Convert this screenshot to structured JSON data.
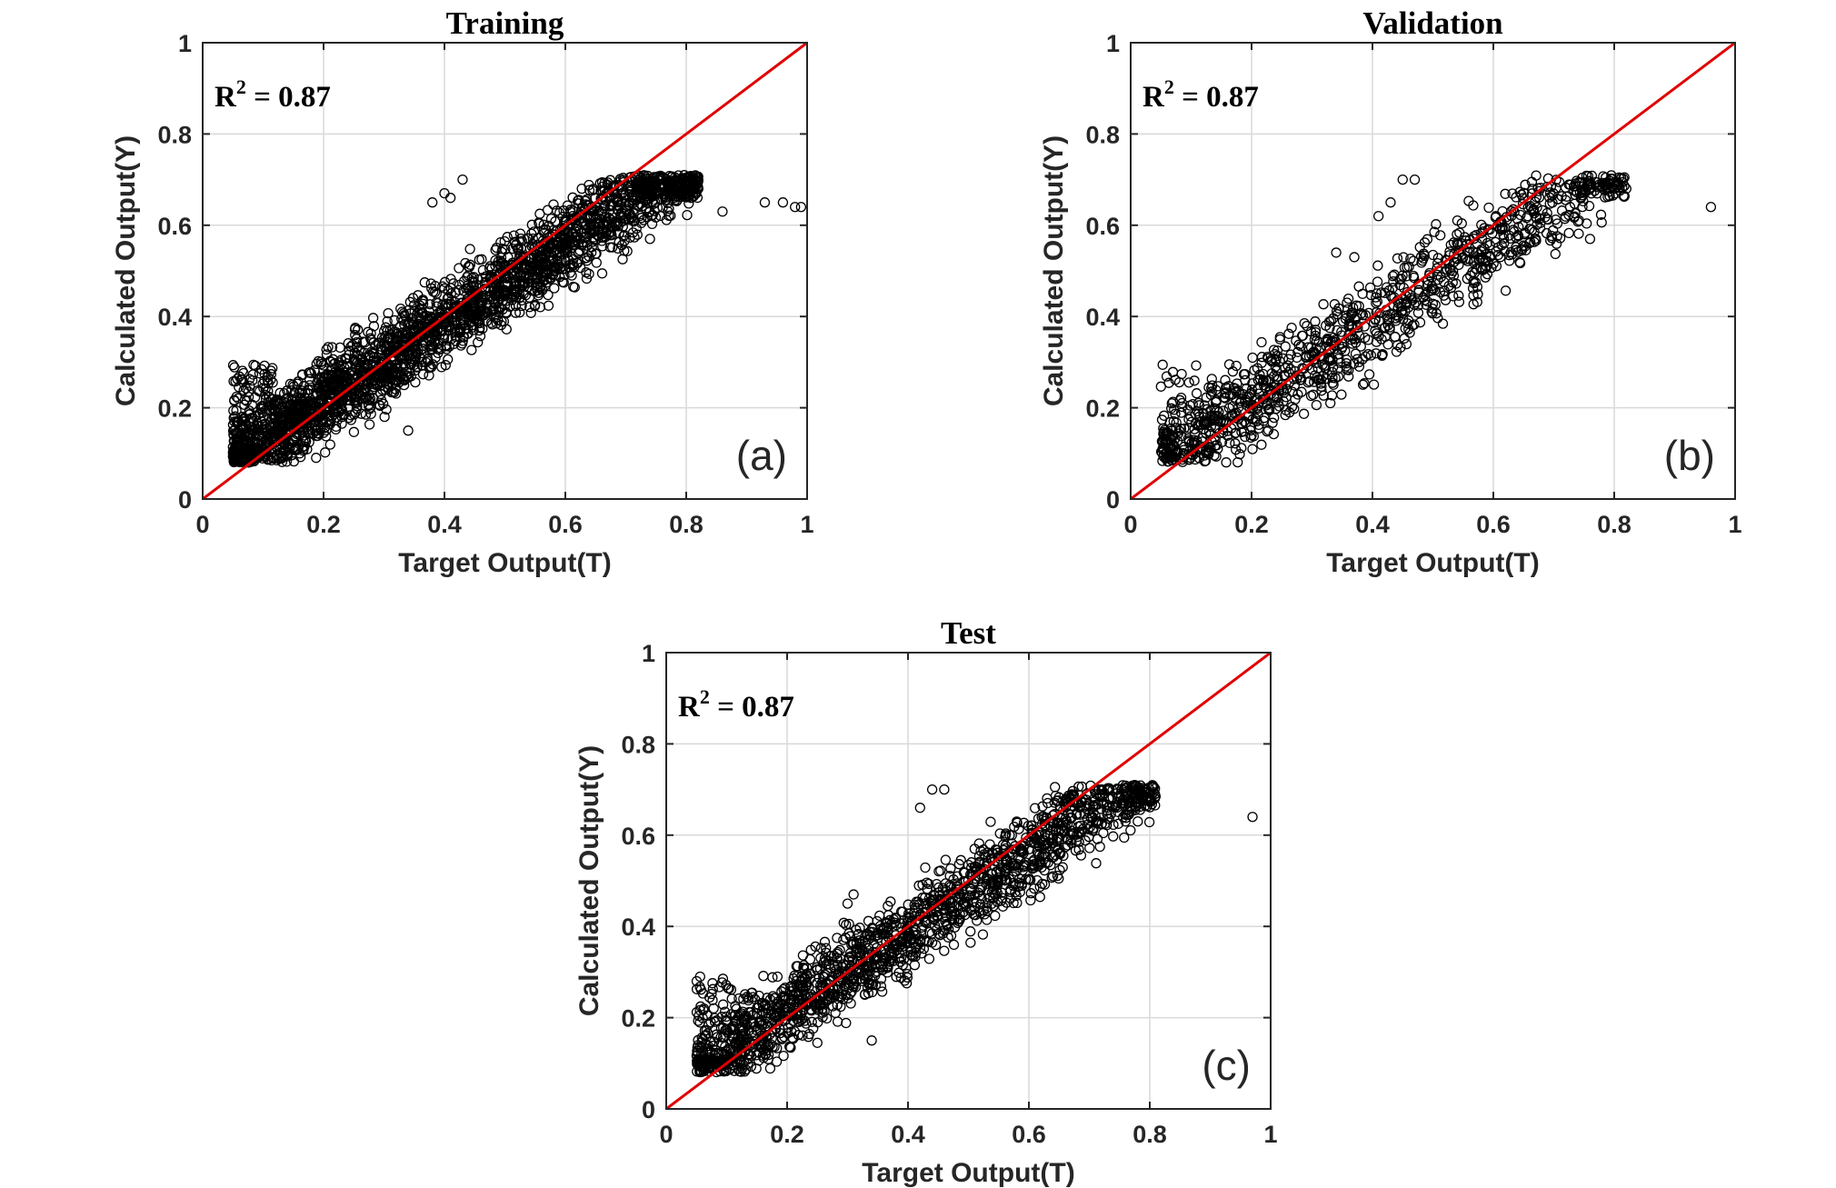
{
  "chart_data": [
    {
      "type": "scatter",
      "title": "Training",
      "panel_label": "(a)",
      "r2_text": {
        "base": "R",
        "sup": "2",
        "rest": " = 0.87"
      },
      "xlabel": "Target Output(T)",
      "ylabel": "Calculated Output(Y)",
      "xlim": [
        0,
        1
      ],
      "ylim": [
        0,
        1
      ],
      "xticks": [
        "0",
        "0.2",
        "0.4",
        "0.6",
        "0.8",
        "1"
      ],
      "yticks": [
        "0",
        "0.2",
        "0.4",
        "0.6",
        "0.8",
        "1"
      ],
      "grid": true,
      "reference_line": {
        "from": [
          0,
          0
        ],
        "to": [
          1,
          1
        ],
        "color": "#e00000"
      },
      "marker": {
        "shape": "open-circle",
        "color": "#000000"
      },
      "cloud": {
        "x_range": [
          0.05,
          0.82
        ],
        "y_range": [
          0.08,
          0.71
        ],
        "slope": 0.87,
        "intercept": 0.04,
        "spread": 0.045,
        "count": 2600
      },
      "points": [
        [
          0.86,
          0.63
        ],
        [
          0.93,
          0.65
        ],
        [
          0.96,
          0.65
        ],
        [
          0.98,
          0.64
        ],
        [
          0.99,
          0.64
        ],
        [
          0.43,
          0.7
        ],
        [
          0.41,
          0.66
        ],
        [
          0.4,
          0.67
        ],
        [
          0.38,
          0.65
        ],
        [
          0.74,
          0.57
        ],
        [
          0.81,
          0.68
        ],
        [
          0.82,
          0.68
        ],
        [
          0.34,
          0.15
        ]
      ]
    },
    {
      "type": "scatter",
      "title": "Validation",
      "panel_label": "(b)",
      "r2_text": {
        "base": "R",
        "sup": "2",
        "rest": " = 0.87"
      },
      "xlabel": "Target Output(T)",
      "ylabel": "Calculated Output(Y)",
      "xlim": [
        0,
        1
      ],
      "ylim": [
        0,
        1
      ],
      "xticks": [
        "0",
        "0.2",
        "0.4",
        "0.6",
        "0.8",
        "1"
      ],
      "yticks": [
        "0",
        "0.2",
        "0.4",
        "0.6",
        "0.8",
        "1"
      ],
      "grid": true,
      "reference_line": {
        "from": [
          0,
          0
        ],
        "to": [
          1,
          1
        ],
        "color": "#e00000"
      },
      "marker": {
        "shape": "open-circle",
        "color": "#000000"
      },
      "cloud": {
        "x_range": [
          0.05,
          0.82
        ],
        "y_range": [
          0.08,
          0.71
        ],
        "slope": 0.87,
        "intercept": 0.04,
        "spread": 0.05,
        "count": 1100
      },
      "points": [
        [
          0.96,
          0.64
        ],
        [
          0.43,
          0.65
        ],
        [
          0.45,
          0.7
        ],
        [
          0.47,
          0.7
        ],
        [
          0.41,
          0.62
        ],
        [
          0.76,
          0.57
        ],
        [
          0.82,
          0.68
        ],
        [
          0.8,
          0.68
        ],
        [
          0.34,
          0.54
        ],
        [
          0.37,
          0.53
        ]
      ]
    },
    {
      "type": "scatter",
      "title": "Test",
      "panel_label": "(c)",
      "r2_text": {
        "base": "R",
        "sup": "2",
        "rest": " = 0.87"
      },
      "xlabel": "Target Output(T)",
      "ylabel": "Calculated Output(Y)",
      "xlim": [
        0,
        1
      ],
      "ylim": [
        0,
        1
      ],
      "xticks": [
        "0",
        "0.2",
        "0.4",
        "0.6",
        "0.8",
        "1"
      ],
      "yticks": [
        "0",
        "0.2",
        "0.4",
        "0.6",
        "0.8",
        "1"
      ],
      "grid": true,
      "reference_line": {
        "from": [
          0,
          0
        ],
        "to": [
          1,
          1
        ],
        "color": "#e00000"
      },
      "marker": {
        "shape": "open-circle",
        "color": "#000000"
      },
      "cloud": {
        "x_range": [
          0.05,
          0.81
        ],
        "y_range": [
          0.08,
          0.71
        ],
        "slope": 0.87,
        "intercept": 0.04,
        "spread": 0.045,
        "count": 1700
      },
      "points": [
        [
          0.97,
          0.64
        ],
        [
          0.42,
          0.66
        ],
        [
          0.44,
          0.7
        ],
        [
          0.46,
          0.7
        ],
        [
          0.3,
          0.45
        ],
        [
          0.31,
          0.47
        ],
        [
          0.34,
          0.15
        ],
        [
          0.8,
          0.68
        ],
        [
          0.64,
          0.51
        ]
      ]
    }
  ]
}
